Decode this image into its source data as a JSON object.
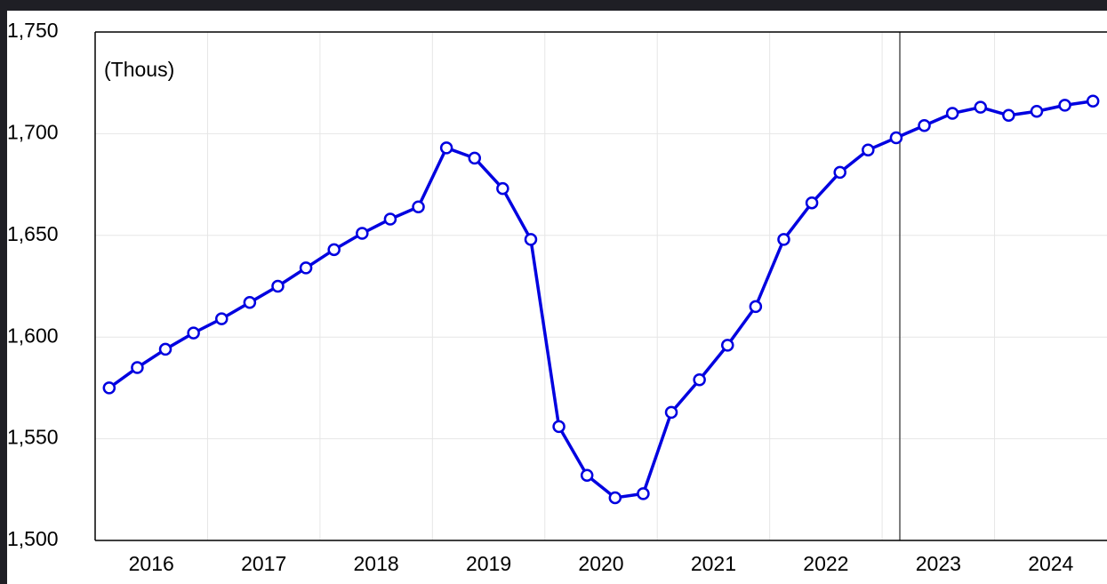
{
  "chart_data": {
    "type": "line",
    "y_label": "(Thous)",
    "x": [
      2016.125,
      2016.375,
      2016.625,
      2016.875,
      2017.125,
      2017.375,
      2017.625,
      2017.875,
      2018.125,
      2018.375,
      2018.625,
      2018.875,
      2019.125,
      2019.375,
      2019.625,
      2019.875,
      2020.125,
      2020.375,
      2020.625,
      2020.875,
      2021.125,
      2021.375,
      2021.625,
      2021.875,
      2022.125,
      2022.375,
      2022.625,
      2022.875,
      2023.125,
      2023.375,
      2023.625,
      2023.875,
      2024.125,
      2024.375,
      2024.625,
      2024.875
    ],
    "series": [
      {
        "color": "#0000e0",
        "values": [
          1575,
          1585,
          1594,
          1602,
          1609,
          1617,
          1625,
          1634,
          1643,
          1651,
          1658,
          1664,
          1693,
          1688,
          1673,
          1648,
          1556,
          1532,
          1521,
          1523,
          1563,
          1579,
          1596,
          1615,
          1648,
          1666,
          1681,
          1692,
          1698,
          1704,
          1710,
          1713,
          1709,
          1711,
          1714,
          1716
        ]
      }
    ],
    "xlim": [
      2016,
      2025
    ],
    "xticks": [
      {
        "value": 2016.5,
        "label": "2016"
      },
      {
        "value": 2017.5,
        "label": "2017"
      },
      {
        "value": 2018.5,
        "label": "2018"
      },
      {
        "value": 2019.5,
        "label": "2019"
      },
      {
        "value": 2020.5,
        "label": "2020"
      },
      {
        "value": 2021.5,
        "label": "2021"
      },
      {
        "value": 2022.5,
        "label": "2022"
      },
      {
        "value": 2023.5,
        "label": "2023"
      },
      {
        "value": 2024.5,
        "label": "2024"
      }
    ],
    "ylim": [
      1500,
      1750
    ],
    "yticks": [
      {
        "value": 1500,
        "label": "1,500"
      },
      {
        "value": 1550,
        "label": "1,550"
      },
      {
        "value": 1600,
        "label": "1,600"
      },
      {
        "value": 1650,
        "label": "1,650"
      },
      {
        "value": 1700,
        "label": "1,700"
      },
      {
        "value": 1750,
        "label": "1,750"
      }
    ],
    "grid": true
  }
}
